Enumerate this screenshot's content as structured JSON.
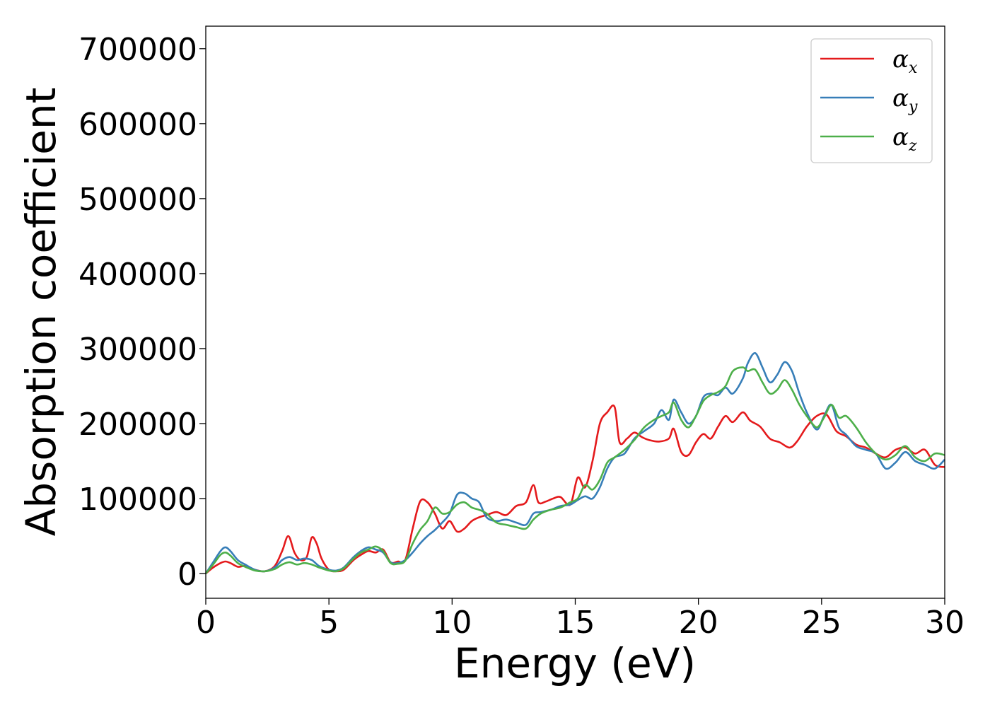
{
  "chart_data": {
    "type": "line",
    "title": "",
    "xlabel": "Energy (eV)",
    "ylabel": "Absorption coefficient",
    "xlim": [
      0,
      30
    ],
    "ylim": [
      -33000,
      730000
    ],
    "xticks": [
      0,
      5,
      10,
      15,
      20,
      25,
      30
    ],
    "xtick_labels": [
      "0",
      "5",
      "10",
      "15",
      "20",
      "25",
      "30"
    ],
    "yticks": [
      0,
      100000,
      200000,
      300000,
      400000,
      500000,
      600000,
      700000
    ],
    "ytick_labels": [
      "0",
      "100000",
      "200000",
      "300000",
      "400000",
      "500000",
      "600000",
      "700000"
    ],
    "grid": false,
    "legend_position": "top-right",
    "series": [
      {
        "name": "α_x",
        "legend_base": "α",
        "legend_sub": "x",
        "color": "#e41a1c",
        "x": [
          0,
          0.3,
          0.6,
          0.8,
          1.0,
          1.3,
          1.6,
          2.0,
          2.4,
          2.8,
          3.1,
          3.35,
          3.6,
          3.85,
          4.1,
          4.3,
          4.5,
          4.7,
          5.0,
          5.3,
          5.6,
          6.0,
          6.3,
          6.6,
          6.9,
          7.2,
          7.5,
          7.8,
          8.1,
          8.4,
          8.7,
          9.0,
          9.3,
          9.6,
          9.9,
          10.2,
          10.5,
          10.8,
          11.1,
          11.4,
          11.8,
          12.2,
          12.6,
          13.0,
          13.3,
          13.5,
          13.8,
          14.1,
          14.4,
          14.8,
          15.1,
          15.4,
          15.7,
          16.0,
          16.3,
          16.6,
          16.8,
          17.1,
          17.4,
          17.7,
          18.0,
          18.4,
          18.8,
          19.0,
          19.3,
          19.6,
          19.9,
          20.2,
          20.5,
          20.8,
          21.1,
          21.4,
          21.8,
          22.1,
          22.5,
          22.9,
          23.3,
          23.7,
          24.0,
          24.4,
          24.8,
          25.2,
          25.6,
          26.0,
          26.4,
          26.8,
          27.2,
          27.6,
          28.0,
          28.4,
          28.8,
          29.2,
          29.6,
          30.0
        ],
        "values": [
          0,
          8000,
          14000,
          16000,
          14000,
          9000,
          10000,
          5000,
          3000,
          10000,
          30000,
          50000,
          28000,
          18000,
          22000,
          48000,
          40000,
          20000,
          5000,
          3000,
          5000,
          18000,
          25000,
          30000,
          28000,
          32000,
          15000,
          16000,
          18000,
          60000,
          96000,
          95000,
          80000,
          60000,
          70000,
          56000,
          60000,
          70000,
          75000,
          78000,
          82000,
          78000,
          90000,
          95000,
          118000,
          95000,
          96000,
          100000,
          102000,
          92000,
          128000,
          115000,
          150000,
          200000,
          215000,
          222000,
          175000,
          180000,
          188000,
          182000,
          178000,
          176000,
          180000,
          193000,
          162000,
          158000,
          175000,
          186000,
          180000,
          196000,
          210000,
          202000,
          215000,
          204000,
          196000,
          180000,
          175000,
          168000,
          176000,
          196000,
          210000,
          212000,
          190000,
          183000,
          172000,
          168000,
          160000,
          155000,
          165000,
          168000,
          160000,
          165000,
          145000,
          142000
        ]
      },
      {
        "name": "α_y",
        "legend_base": "α",
        "legend_sub": "y",
        "color": "#377eb8",
        "x": [
          0,
          0.3,
          0.6,
          0.8,
          1.0,
          1.3,
          1.6,
          2.0,
          2.4,
          2.8,
          3.1,
          3.4,
          3.7,
          4.0,
          4.3,
          4.6,
          5.0,
          5.3,
          5.6,
          6.0,
          6.3,
          6.6,
          6.9,
          7.2,
          7.5,
          7.8,
          8.1,
          8.4,
          8.7,
          9.0,
          9.3,
          9.6,
          9.9,
          10.2,
          10.5,
          10.8,
          11.1,
          11.4,
          11.8,
          12.2,
          12.6,
          13.0,
          13.3,
          13.6,
          14.0,
          14.4,
          14.8,
          15.1,
          15.4,
          15.7,
          16.0,
          16.3,
          16.6,
          17.0,
          17.4,
          17.8,
          18.2,
          18.5,
          18.8,
          19.0,
          19.3,
          19.6,
          19.9,
          20.2,
          20.5,
          20.8,
          21.1,
          21.4,
          21.8,
          22.0,
          22.3,
          22.6,
          22.9,
          23.2,
          23.5,
          23.8,
          24.1,
          24.4,
          24.8,
          25.1,
          25.4,
          25.7,
          26.0,
          26.4,
          26.8,
          27.2,
          27.6,
          28.0,
          28.4,
          28.8,
          29.2,
          29.6,
          30.0
        ],
        "values": [
          0,
          15000,
          30000,
          35000,
          30000,
          18000,
          12000,
          5000,
          3000,
          8000,
          18000,
          22000,
          18000,
          20000,
          18000,
          10000,
          5000,
          4000,
          8000,
          22000,
          30000,
          35000,
          32000,
          28000,
          15000,
          14000,
          18000,
          28000,
          40000,
          50000,
          58000,
          68000,
          80000,
          105000,
          107000,
          100000,
          95000,
          75000,
          70000,
          72000,
          68000,
          65000,
          80000,
          82000,
          85000,
          90000,
          92000,
          98000,
          103000,
          100000,
          115000,
          140000,
          155000,
          160000,
          180000,
          190000,
          200000,
          218000,
          205000,
          232000,
          215000,
          200000,
          210000,
          235000,
          240000,
          238000,
          248000,
          240000,
          260000,
          280000,
          294000,
          275000,
          255000,
          265000,
          282000,
          270000,
          240000,
          215000,
          192000,
          210000,
          225000,
          195000,
          185000,
          170000,
          165000,
          160000,
          140000,
          148000,
          162000,
          150000,
          145000,
          140000,
          152000
        ]
      },
      {
        "name": "α_z",
        "legend_base": "α",
        "legend_sub": "z",
        "color": "#4daf4a",
        "x": [
          0,
          0.3,
          0.6,
          0.8,
          1.0,
          1.3,
          1.6,
          2.0,
          2.4,
          2.8,
          3.1,
          3.4,
          3.7,
          4.0,
          4.3,
          4.6,
          5.0,
          5.3,
          5.6,
          6.0,
          6.3,
          6.6,
          6.9,
          7.2,
          7.5,
          7.8,
          8.1,
          8.4,
          8.7,
          9.0,
          9.3,
          9.6,
          9.9,
          10.2,
          10.5,
          10.8,
          11.1,
          11.4,
          11.8,
          12.2,
          12.6,
          13.0,
          13.3,
          13.6,
          14.0,
          14.4,
          14.8,
          15.1,
          15.4,
          15.7,
          16.0,
          16.3,
          16.6,
          17.0,
          17.4,
          17.8,
          18.2,
          18.5,
          18.8,
          19.0,
          19.3,
          19.6,
          19.9,
          20.2,
          20.5,
          20.8,
          21.1,
          21.4,
          21.8,
          22.0,
          22.3,
          22.6,
          22.9,
          23.2,
          23.5,
          23.8,
          24.1,
          24.4,
          24.8,
          25.1,
          25.4,
          25.7,
          26.0,
          26.4,
          26.8,
          27.2,
          27.6,
          28.0,
          28.4,
          28.8,
          29.2,
          29.6,
          30.0
        ],
        "values": [
          0,
          12000,
          25000,
          28000,
          24000,
          14000,
          9000,
          4000,
          3000,
          6000,
          12000,
          15000,
          12000,
          14000,
          12000,
          8000,
          4000,
          3000,
          7000,
          20000,
          28000,
          32000,
          36000,
          30000,
          14000,
          13000,
          17000,
          40000,
          58000,
          70000,
          88000,
          80000,
          82000,
          92000,
          95000,
          88000,
          85000,
          80000,
          68000,
          65000,
          62000,
          60000,
          72000,
          80000,
          85000,
          88000,
          95000,
          100000,
          118000,
          112000,
          125000,
          148000,
          155000,
          165000,
          178000,
          195000,
          205000,
          210000,
          215000,
          228000,
          205000,
          195000,
          210000,
          230000,
          238000,
          242000,
          250000,
          270000,
          275000,
          270000,
          272000,
          255000,
          240000,
          245000,
          258000,
          245000,
          225000,
          210000,
          195000,
          208000,
          225000,
          208000,
          210000,
          195000,
          175000,
          160000,
          152000,
          158000,
          170000,
          155000,
          150000,
          160000,
          158000
        ]
      }
    ]
  }
}
